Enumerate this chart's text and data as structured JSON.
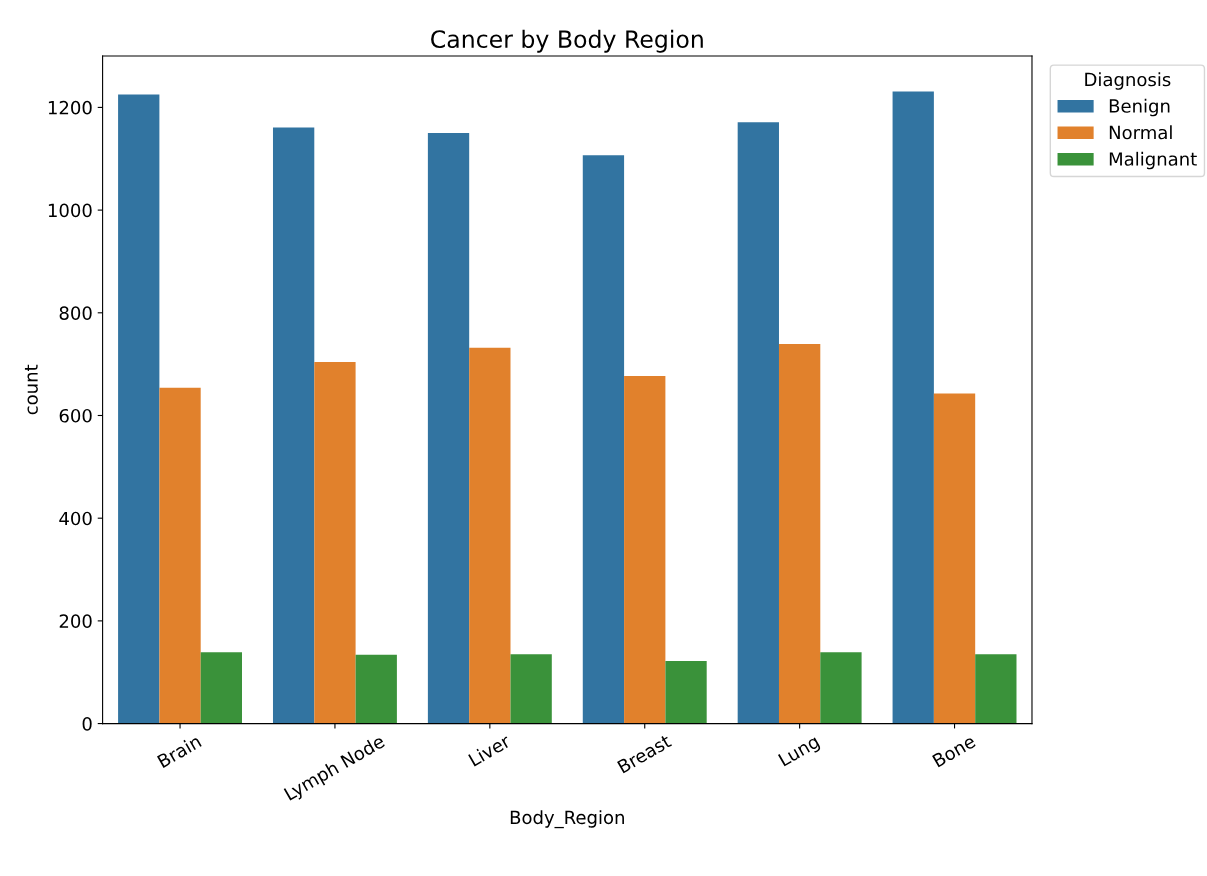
{
  "chart_data": {
    "type": "bar",
    "title": "Cancer by Body Region",
    "xlabel": "Body_Region",
    "ylabel": "count",
    "legend_title": "Diagnosis",
    "categories": [
      "Brain",
      "Lymph Node",
      "Liver",
      "Breast",
      "Lung",
      "Bone"
    ],
    "series": [
      {
        "name": "Benign",
        "color": "#3274a1",
        "values": [
          1225,
          1161,
          1150,
          1107,
          1171,
          1231
        ]
      },
      {
        "name": "Normal",
        "color": "#e1812c",
        "values": [
          654,
          704,
          732,
          677,
          739,
          643
        ]
      },
      {
        "name": "Malignant",
        "color": "#3a923a",
        "values": [
          139,
          134,
          135,
          122,
          139,
          135
        ]
      }
    ],
    "ylim": [
      0,
      1300
    ],
    "yticks": [
      0,
      200,
      400,
      600,
      800,
      1000,
      1200
    ],
    "grid": false,
    "legend": "top right"
  }
}
